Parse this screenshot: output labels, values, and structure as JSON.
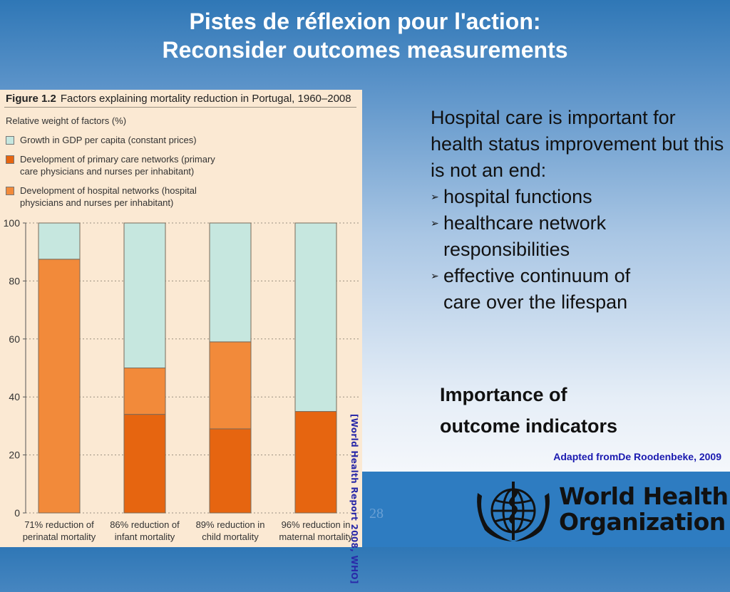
{
  "slide": {
    "title_line1": "Pistes de réflexion pour l'action:",
    "title_line2": "Reconsider outcomes measurements",
    "body_intro": "Hospital care is important for health status improvement but this is not an end:",
    "bullets": [
      {
        "line1": "hospital functions",
        "line2": ""
      },
      {
        "line1": "healthcare network",
        "line2": "responsibilities"
      },
      {
        "line1": "effective continuum of",
        "line2": "care over the lifespan"
      }
    ],
    "importance_line1": "Importance of",
    "importance_line2": "outcome indicators",
    "adapted": "Adapted fromDe Roodenbeke, 2009",
    "source_note": "[World Health Report 2008, WHO]",
    "page_number": "28",
    "who_line1": "World Health",
    "who_line2": "Organization"
  },
  "figure": {
    "label": "Figure 1.2",
    "caption": "Factors explaining mortality reduction in Portugal, 1960–2008",
    "subtitle": "Relative weight of factors (%)"
  },
  "chart_data": {
    "type": "bar",
    "stacked": true,
    "ylim": [
      0,
      100
    ],
    "yticks": [
      "0",
      "20",
      "40",
      "60",
      "80",
      "100"
    ],
    "categories": [
      [
        "71% reduction of",
        "perinatal mortality"
      ],
      [
        "86% reduction of",
        "infant mortality"
      ],
      [
        "89% reduction in",
        "child mortality"
      ],
      [
        "96% reduction in",
        "maternal mortality"
      ]
    ],
    "series": [
      {
        "name": "Development of primary care networks (primary care physicians and nurses per inhabitant)",
        "legend_line1": "Development of primary care networks (primary",
        "legend_line2": "care physicians and nurses per inhabitant)",
        "color": "#e66510",
        "values": [
          0,
          34,
          29,
          35
        ]
      },
      {
        "name": "Development of hospital networks (hospital physicians and nurses per inhabitant)",
        "legend_line1": "Development of hospital networks (hospital",
        "legend_line2": "physicians and nurses per inhabitant)",
        "color": "#f28a3a",
        "values": [
          87.5,
          16,
          30,
          0
        ]
      },
      {
        "name": "Growth in GDP per capita (constant prices)",
        "legend_line1": "Growth in GDP per capita (constant prices)",
        "legend_line2": "",
        "color": "#c6e7df",
        "values": [
          12.5,
          50,
          41,
          65
        ]
      }
    ]
  }
}
